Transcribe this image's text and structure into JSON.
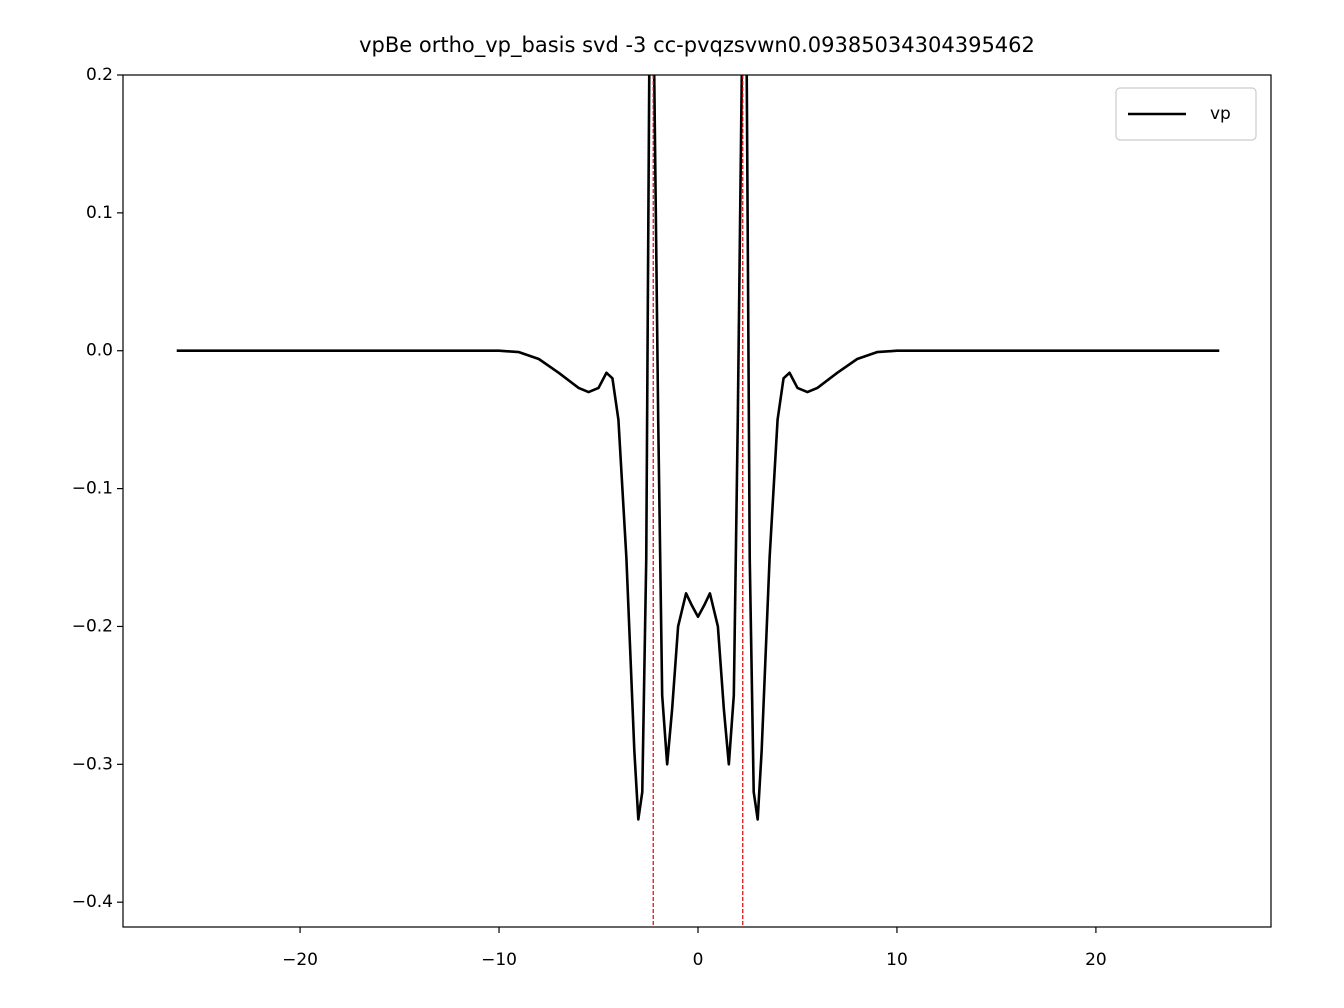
{
  "chart_data": {
    "type": "line",
    "title": "vpBe ortho_vp_basis svd -3 cc-pvqzsvwn0.09385034304395462",
    "x": [
      -26.2,
      -20,
      -15,
      -10,
      -9,
      -8,
      -7,
      -6,
      -5.5,
      -5,
      -4.6,
      -4.3,
      -4,
      -3.6,
      -3.2,
      -3,
      -2.8,
      -2.6,
      -2.45,
      -2.3,
      -2.2,
      -2,
      -1.8,
      -1.55,
      -1.3,
      -1,
      -0.6,
      -0.3,
      0,
      0.3,
      0.6,
      1,
      1.3,
      1.55,
      1.8,
      2,
      2.2,
      2.3,
      2.45,
      2.6,
      2.8,
      3,
      3.2,
      3.6,
      4,
      4.3,
      4.6,
      5,
      5.5,
      6,
      7,
      8,
      9,
      10,
      15,
      20,
      26.2
    ],
    "series": [
      {
        "name": "vp",
        "color": "#000000",
        "values": [
          0,
          0,
          0,
          0,
          -0.001,
          -0.006,
          -0.016,
          -0.027,
          -0.03,
          -0.027,
          -0.016,
          -0.02,
          -0.05,
          -0.15,
          -0.29,
          -0.34,
          -0.32,
          -0.15,
          0.2,
          0.6,
          0.2,
          -0.05,
          -0.25,
          -0.3,
          -0.26,
          -0.2,
          -0.176,
          -0.185,
          -0.193,
          -0.185,
          -0.176,
          -0.2,
          -0.26,
          -0.3,
          -0.25,
          -0.05,
          0.2,
          0.6,
          0.2,
          -0.15,
          -0.32,
          -0.34,
          -0.29,
          -0.15,
          -0.05,
          -0.02,
          -0.016,
          -0.027,
          -0.03,
          -0.027,
          -0.016,
          -0.006,
          -0.001,
          0,
          0,
          0,
          0
        ]
      }
    ],
    "vlines": [
      -2.25,
      2.25
    ],
    "vline_color": "#e00000",
    "xlim": [
      -28.9,
      28.8
    ],
    "xticks": [
      {
        "value": -20,
        "label": "−20"
      },
      {
        "value": -10,
        "label": "−10"
      },
      0,
      10,
      20
    ],
    "ylim": [
      -0.418,
      0.2
    ],
    "yticks": [
      {
        "value": -0.4,
        "label": "−0.4"
      },
      {
        "value": -0.3,
        "label": "−0.3"
      },
      {
        "value": -0.2,
        "label": "−0.2"
      },
      {
        "value": -0.1,
        "label": "−0.1"
      },
      {
        "value": 0,
        "label": "0.0"
      },
      0.1,
      0.2
    ],
    "grid": false,
    "legend": "upper right"
  }
}
